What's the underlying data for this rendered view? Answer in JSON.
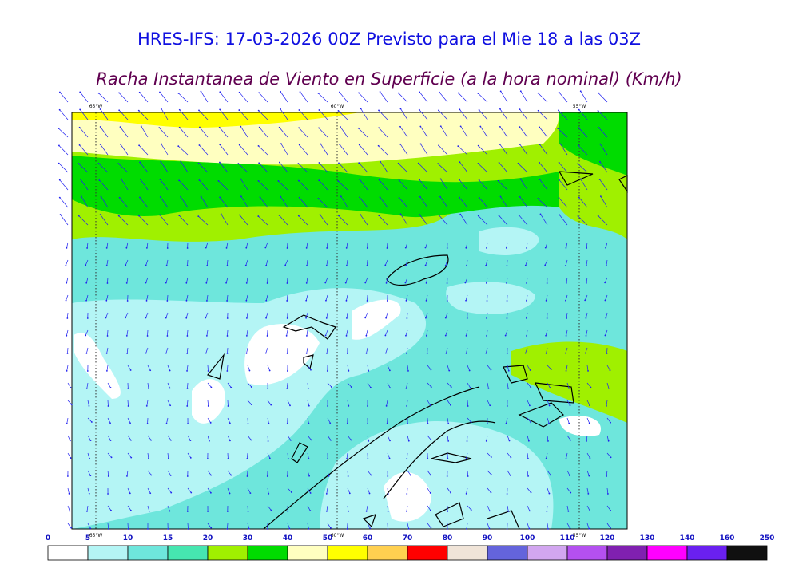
{
  "header": {
    "title": "HRES-IFS: 17-03-2026 00Z Previsto para el Mie 18 a las 03Z",
    "subtitle": "Racha Instantanea de Viento en Superficie (a la hora nominal) (Km/h)"
  },
  "map": {
    "longitude_labels": [
      "65°W",
      "60°W",
      "55°W"
    ]
  },
  "legend": {
    "bounds": [
      0,
      5,
      10,
      15,
      20,
      30,
      40,
      50,
      60,
      70,
      80,
      90,
      100,
      110,
      120,
      130,
      140,
      160,
      250
    ],
    "colors": [
      "#ffffff",
      "#b4f5f5",
      "#6ee6dc",
      "#46e6b0",
      "#a0f000",
      "#00dc00",
      "#ffffc0",
      "#ffff00",
      "#ffd050",
      "#ff0000",
      "#f0e4d8",
      "#6464dc",
      "#d2a6f0",
      "#b450f0",
      "#8020b0",
      "#ff00ff",
      "#6a20f0",
      "#101010"
    ]
  }
}
